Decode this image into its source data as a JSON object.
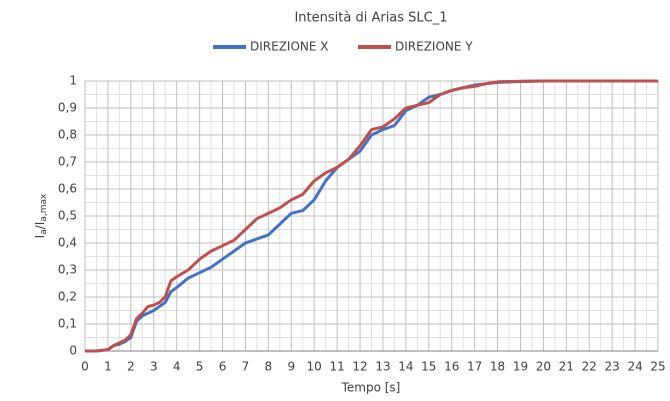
{
  "chart_data": {
    "type": "line",
    "title": "Intensità di Arias SLC_1",
    "xlabel": "Tempo [s]",
    "ylabel": [
      "I",
      "a",
      "/I",
      "a,max"
    ],
    "x": [
      0,
      0.5,
      1,
      1.25,
      1.5,
      1.75,
      2,
      2.25,
      2.5,
      2.75,
      3,
      3.25,
      3.5,
      3.75,
      4,
      4.5,
      5,
      5.5,
      6,
      6.5,
      7,
      7.5,
      8,
      8.5,
      9,
      9.5,
      10,
      10.5,
      11,
      11.5,
      12,
      12.5,
      13,
      13.5,
      14,
      14.5,
      15,
      15.5,
      16,
      16.5,
      17,
      17.5,
      18,
      19,
      20,
      25
    ],
    "series": [
      {
        "name": "DIREZIONE X",
        "color": "#4472c4",
        "values": [
          0,
          0,
          0.005,
          0.02,
          0.025,
          0.035,
          0.05,
          0.11,
          0.13,
          0.14,
          0.15,
          0.165,
          0.18,
          0.22,
          0.235,
          0.27,
          0.29,
          0.31,
          0.34,
          0.37,
          0.4,
          0.415,
          0.43,
          0.47,
          0.51,
          0.52,
          0.56,
          0.63,
          0.68,
          0.71,
          0.74,
          0.8,
          0.82,
          0.835,
          0.89,
          0.91,
          0.94,
          0.95,
          0.965,
          0.975,
          0.985,
          0.99,
          0.995,
          0.998,
          1,
          1
        ]
      },
      {
        "name": "DIREZIONE Y",
        "color": "#c0504d",
        "values": [
          0,
          0,
          0.005,
          0.02,
          0.03,
          0.04,
          0.06,
          0.12,
          0.14,
          0.165,
          0.17,
          0.18,
          0.2,
          0.26,
          0.275,
          0.3,
          0.34,
          0.37,
          0.39,
          0.41,
          0.45,
          0.49,
          0.51,
          0.53,
          0.56,
          0.58,
          0.63,
          0.66,
          0.68,
          0.71,
          0.76,
          0.82,
          0.83,
          0.86,
          0.9,
          0.91,
          0.92,
          0.95,
          0.965,
          0.975,
          0.98,
          0.99,
          0.997,
          0.999,
          1,
          1
        ]
      }
    ],
    "xlim": [
      0,
      25
    ],
    "xticks": [
      0,
      1,
      2,
      3,
      4,
      5,
      6,
      7,
      8,
      9,
      10,
      11,
      12,
      13,
      14,
      15,
      16,
      17,
      18,
      19,
      20,
      21,
      22,
      23,
      24,
      25
    ],
    "ylim": [
      0,
      1
    ],
    "yticks": [
      0,
      {
        "value": 0.1,
        "label": "0,1"
      },
      {
        "value": 0.2,
        "label": "0,2"
      },
      {
        "value": 0.3,
        "label": "0,3"
      },
      {
        "value": 0.4,
        "label": "0,4"
      },
      {
        "value": 0.5,
        "label": "0,5"
      },
      {
        "value": 0.6,
        "label": "0,6"
      },
      {
        "value": 0.7,
        "label": "0,7"
      },
      {
        "value": 0.8,
        "label": "0,8"
      },
      {
        "value": 0.9,
        "label": "0,9"
      },
      1
    ],
    "grid": true,
    "minor_grid": true,
    "legend": "top"
  }
}
